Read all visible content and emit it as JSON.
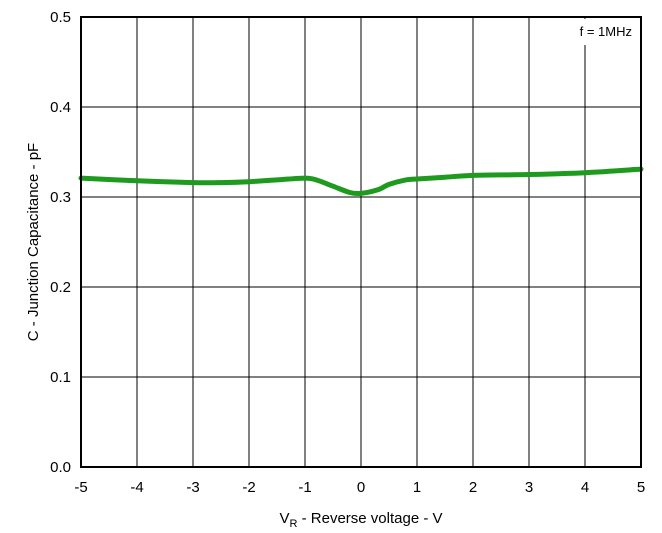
{
  "chart_data": {
    "type": "line",
    "title": "",
    "xlabel": {
      "main": "V",
      "sub": "R",
      "rest": " - Reverse voltage - V"
    },
    "ylabel": "C - Junction Capacitance - pF",
    "xlim": [
      -5,
      5
    ],
    "ylim": [
      0,
      0.5
    ],
    "x_ticks": [
      "-5",
      "-4",
      "-3",
      "-2",
      "-1",
      "0",
      "1",
      "2",
      "3",
      "4",
      "5"
    ],
    "y_ticks": [
      "0.0",
      "0.1",
      "0.2",
      "0.3",
      "0.4",
      "0.5"
    ],
    "grid": true,
    "annotation": "f = 1MHz",
    "series": [
      {
        "color": "#1e9a1e",
        "x": [
          -5,
          -4,
          -3,
          -2.5,
          -2,
          -1.5,
          -1,
          -0.8,
          -0.5,
          -0.2,
          0,
          0.3,
          0.5,
          0.8,
          1,
          1.5,
          2,
          3,
          4,
          5
        ],
        "y": [
          0.321,
          0.318,
          0.316,
          0.316,
          0.317,
          0.319,
          0.321,
          0.319,
          0.312,
          0.305,
          0.304,
          0.308,
          0.314,
          0.319,
          0.32,
          0.322,
          0.324,
          0.325,
          0.327,
          0.331
        ]
      }
    ]
  }
}
